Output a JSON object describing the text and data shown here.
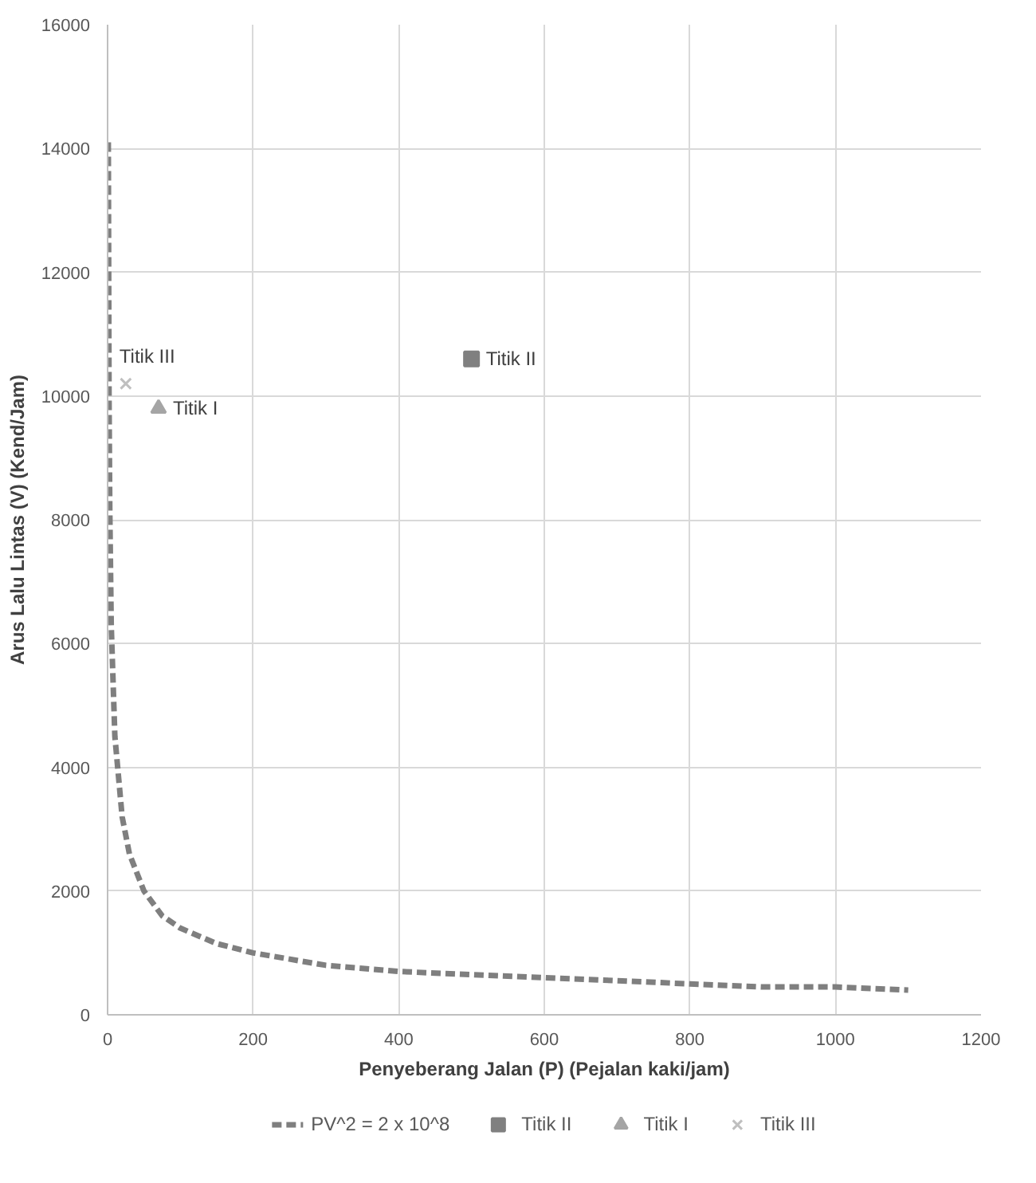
{
  "chart_data": {
    "type": "scatter",
    "xlabel": "Penyeberang Jalan (P) (Pejalan kaki/jam)",
    "ylabel": "Arus Lalu Lintas (V) (Kend/Jam)",
    "xlim": [
      0,
      1200
    ],
    "ylim": [
      0,
      16000
    ],
    "xticks": [
      0,
      200,
      400,
      600,
      800,
      1000,
      1200
    ],
    "yticks": [
      0,
      2000,
      4000,
      6000,
      8000,
      10000,
      12000,
      14000,
      16000
    ],
    "grid": true,
    "legend": "bottom",
    "series": [
      {
        "name": "PV^2 = 2 x 10^8",
        "type": "line",
        "line_style": "dashed",
        "marker": "none",
        "color": "#7f7f7f",
        "x": [
          1,
          2,
          3,
          5,
          10,
          20,
          30,
          50,
          75,
          100,
          150,
          200,
          300,
          400,
          500,
          600,
          700,
          800,
          900,
          1000,
          1100
        ],
        "values": [
          14100,
          10000,
          8200,
          6300,
          4500,
          3200,
          2600,
          2000,
          1600,
          1400,
          1150,
          1000,
          800,
          700,
          650,
          600,
          550,
          500,
          450,
          450,
          400
        ]
      },
      {
        "name": "Titik II",
        "marker": "square",
        "color": "#808080",
        "x": [
          500
        ],
        "values": [
          10600
        ]
      },
      {
        "name": "Titik I",
        "marker": "triangle",
        "color": "#a5a5a5",
        "x": [
          70
        ],
        "values": [
          9800
        ]
      },
      {
        "name": "Titik III",
        "marker": "cross",
        "color": "#bfbfbf",
        "x": [
          25
        ],
        "values": [
          10200
        ]
      }
    ]
  }
}
